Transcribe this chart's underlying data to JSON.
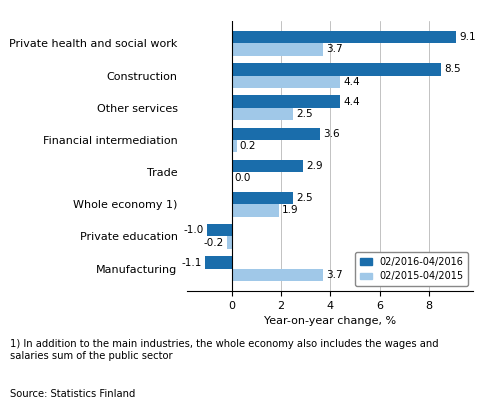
{
  "categories": [
    "Private health and social work",
    "Construction",
    "Other services",
    "Financial intermediation",
    "Trade",
    "Whole economy 1)",
    "Private education",
    "Manufacturing"
  ],
  "series_2016": [
    9.1,
    8.5,
    4.4,
    3.6,
    2.9,
    2.5,
    -1.0,
    -1.1
  ],
  "series_2015": [
    3.7,
    4.4,
    2.5,
    0.2,
    0.0,
    1.9,
    -0.2,
    3.7
  ],
  "color_2016": "#1a6dab",
  "color_2015": "#a0c8e8",
  "xlabel": "Year-on-year change, %",
  "legend_2016": "02/2016-04/2016",
  "legend_2015": "02/2015-04/2015",
  "xlim": [
    -1.8,
    9.8
  ],
  "xticks": [
    0,
    2,
    4,
    6,
    8
  ],
  "footnote": "1) In addition to the main industries, the whole economy also includes the wages and\nsalaries sum of the public sector",
  "source": "Source: Statistics Finland"
}
